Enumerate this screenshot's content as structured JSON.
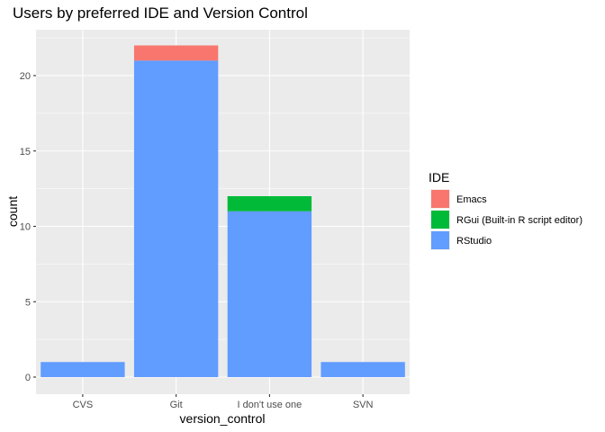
{
  "chart_data": {
    "type": "bar",
    "stacked": true,
    "title": "Users by preferred IDE and Version Control",
    "xlabel": "version_control",
    "ylabel": "count",
    "categories": [
      "CVS",
      "Git",
      "I don't use one",
      "SVN"
    ],
    "ylim": [
      0,
      23
    ],
    "yticks": [
      0,
      5,
      10,
      15,
      20
    ],
    "series": [
      {
        "name": "Emacs",
        "color": "#F8766D",
        "values": [
          0,
          1,
          0,
          0
        ]
      },
      {
        "name": "RGui (Built-in R script editor)",
        "color": "#00BA38",
        "values": [
          0,
          0,
          1,
          0
        ]
      },
      {
        "name": "RStudio",
        "color": "#619CFF",
        "values": [
          1,
          21,
          11,
          1
        ]
      }
    ],
    "stack_order": [
      "RStudio",
      "RGui (Built-in R script editor)",
      "Emacs"
    ],
    "legend": {
      "title": "IDE",
      "position": "right"
    },
    "panel_background": "#EBEBEB",
    "grid": true
  }
}
